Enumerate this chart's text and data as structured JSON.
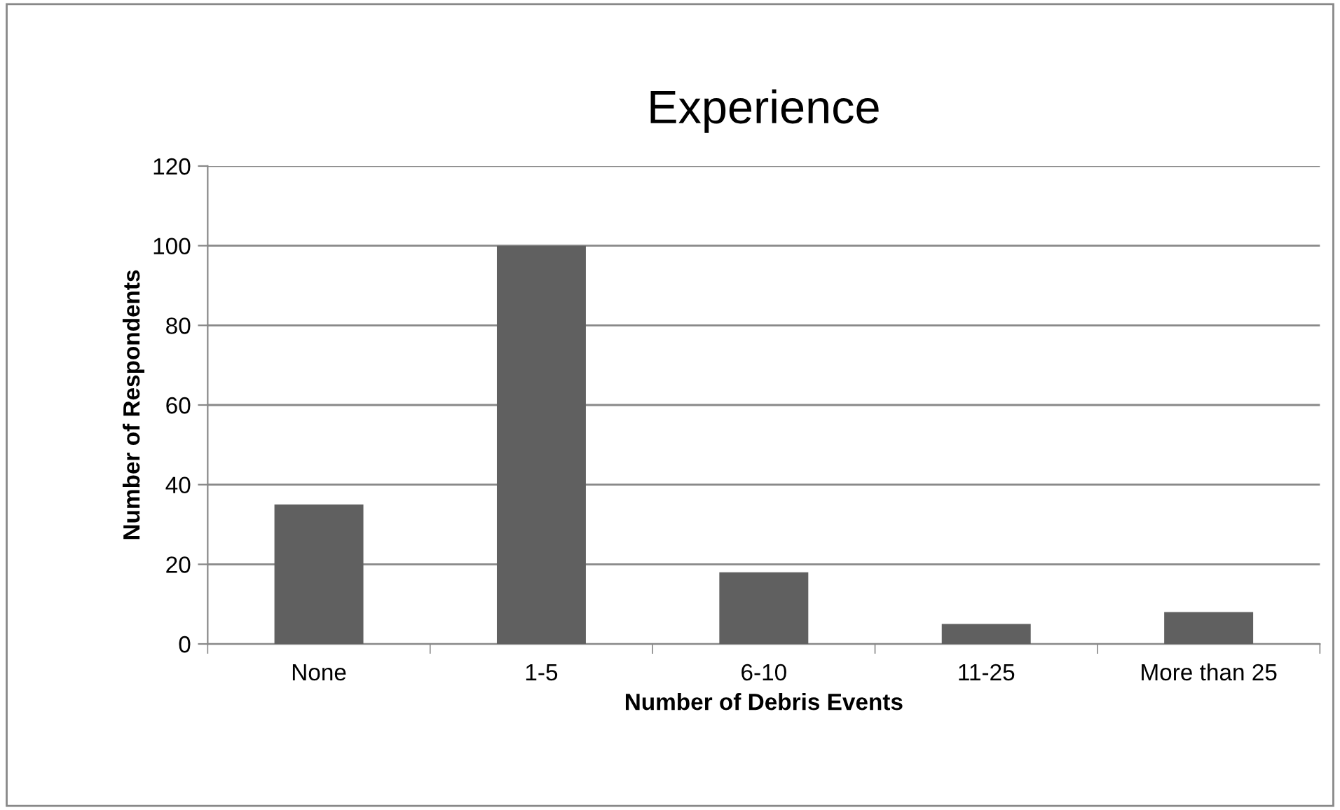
{
  "chart_data": {
    "type": "bar",
    "title": "Experience",
    "xlabel": "Number of Debris Events",
    "ylabel": "Number of Respondents",
    "categories": [
      "None",
      "1-5",
      "6-10",
      "11-25",
      "More than 25"
    ],
    "values": [
      35,
      100,
      18,
      5,
      8
    ],
    "color": "#606060",
    "ylim": [
      0,
      120
    ],
    "yticks": [
      0,
      20,
      40,
      60,
      80,
      100,
      120
    ],
    "grid": "y",
    "legend": false
  }
}
